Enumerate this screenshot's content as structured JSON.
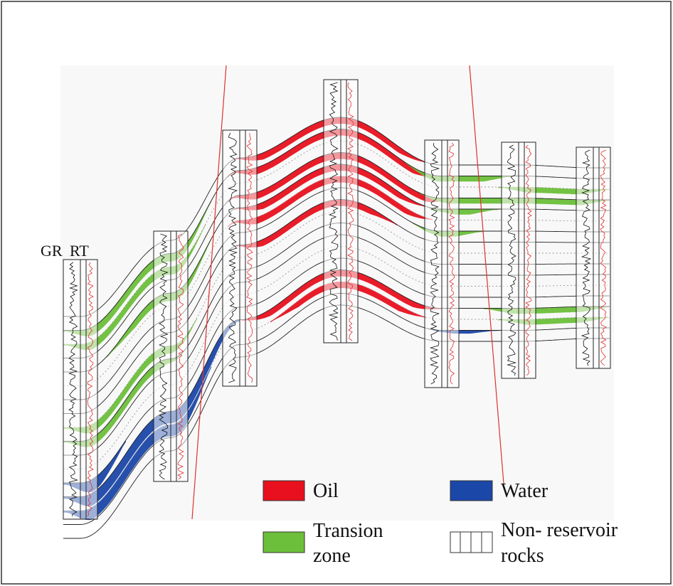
{
  "well_labels": {
    "gr": "GR",
    "rt": "RT"
  },
  "legend": {
    "items": [
      {
        "lines": [
          "Oil"
        ]
      },
      {
        "lines": [
          "Water"
        ]
      },
      {
        "lines": [
          "Transion",
          "zone"
        ]
      },
      {
        "lines": [
          "Non- reservoir",
          "rocks"
        ]
      }
    ]
  }
}
